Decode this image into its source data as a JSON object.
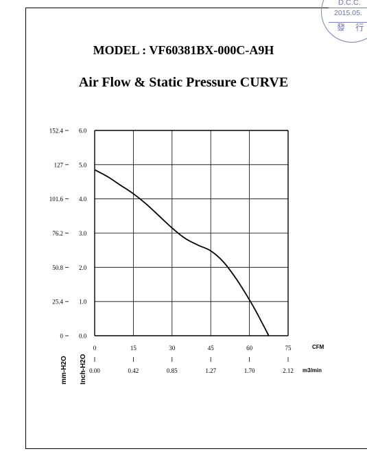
{
  "model_title": "MODEL : VF60381BX-000C-A9H",
  "curve_title": "Air Flow & Static Pressure CURVE",
  "stamp": {
    "line1": "D.C.C.",
    "line2": "2015.05.",
    "line3": "發 行",
    "color": "#6b70b8"
  },
  "chart_data": {
    "type": "line",
    "title": "Air Flow & Static Pressure CURVE",
    "x_ticks_cfm": [
      "0",
      "15",
      "30",
      "45",
      "60",
      "75"
    ],
    "x_ticks_m3min": [
      "0.00",
      "0.42",
      "0.85",
      "1.27",
      "1.70",
      "2.12"
    ],
    "y_ticks_inch": [
      "0.0",
      "1.0",
      "2.0",
      "3.0",
      "4.0",
      "5.0",
      "6.0"
    ],
    "y_ticks_mm": [
      "0",
      "25.4",
      "50.8",
      "76.2",
      "101.6",
      "127",
      "152.4"
    ],
    "xlabel_cfm": "CFM",
    "xlabel_m3min": "m3/min",
    "ylabel_inch": "Inch-H2O",
    "ylabel_mm": "mm-H2O",
    "xlim": [
      0,
      75
    ],
    "ylim": [
      0,
      6
    ],
    "grid": true,
    "series": [
      {
        "x": [
          0,
          5,
          10,
          15,
          20,
          25,
          30,
          35,
          40,
          45,
          50,
          55,
          60,
          63,
          67.5
        ],
        "y": [
          4.85,
          4.65,
          4.4,
          4.15,
          3.85,
          3.5,
          3.15,
          2.85,
          2.65,
          2.48,
          2.15,
          1.65,
          1.05,
          0.65,
          0.0
        ]
      }
    ]
  }
}
